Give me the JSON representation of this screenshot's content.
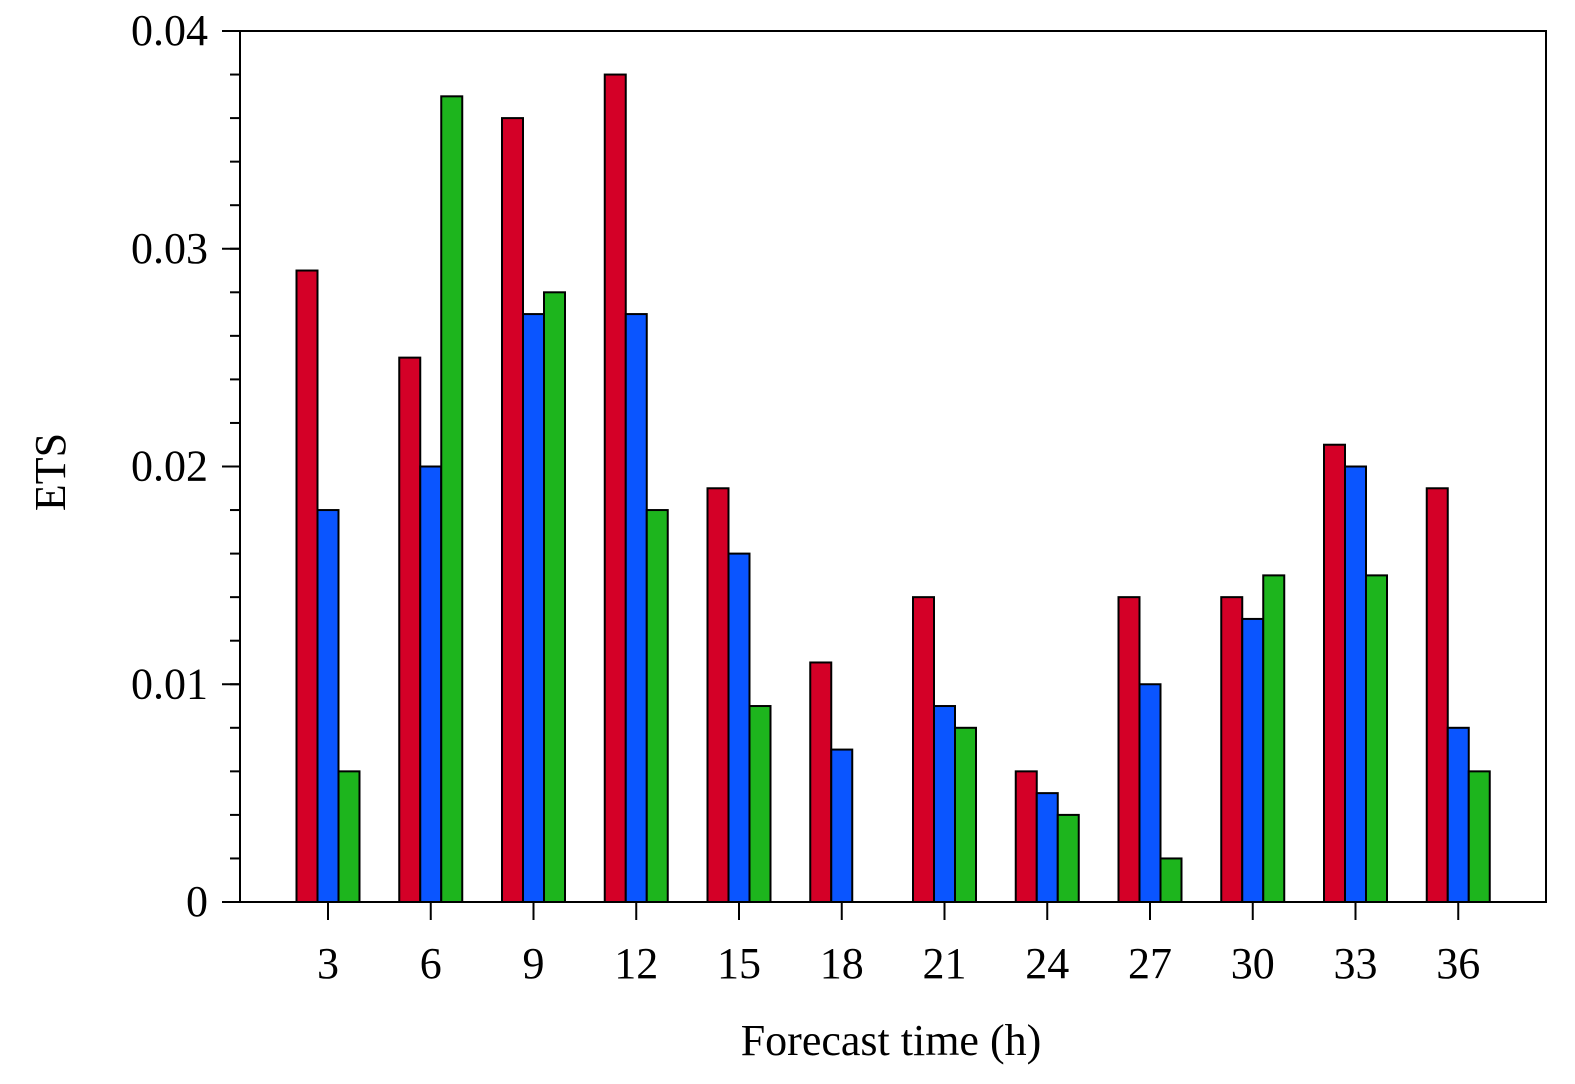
{
  "chart_data": {
    "type": "bar",
    "xlabel": "Forecast time (h)",
    "ylabel": "ETS",
    "ylim": [
      0,
      0.04
    ],
    "y_ticks": [
      0,
      0.01,
      0.02,
      0.03,
      0.04
    ],
    "y_tick_labels": [
      "0",
      "0.01",
      "0.02",
      "0.03",
      "0.04"
    ],
    "y_minor_step": 0.002,
    "categories": [
      "3",
      "6",
      "9",
      "12",
      "15",
      "18",
      "21",
      "24",
      "27",
      "30",
      "33",
      "36"
    ],
    "grid": false,
    "legend": "none",
    "series": [
      {
        "color": "#d40027",
        "values": [
          0.029,
          0.025,
          0.036,
          0.038,
          0.019,
          0.011,
          0.014,
          0.006,
          0.014,
          0.014,
          0.021,
          0.019
        ]
      },
      {
        "color": "#0a55ff",
        "values": [
          0.018,
          0.02,
          0.027,
          0.027,
          0.016,
          0.007,
          0.009,
          0.005,
          0.01,
          0.013,
          0.02,
          0.008
        ]
      },
      {
        "color": "#1db51d",
        "values": [
          0.006,
          0.037,
          0.028,
          0.018,
          0.009,
          0,
          0.008,
          0.004,
          0.002,
          0.015,
          0.015,
          0.006
        ]
      }
    ]
  }
}
